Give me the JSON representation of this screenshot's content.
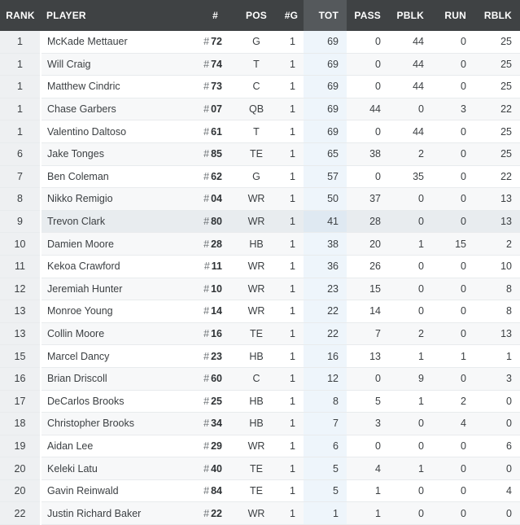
{
  "headers": {
    "rank": "RANK",
    "player": "PLAYER",
    "num": "#",
    "pos": "POS",
    "games": "#G",
    "tot": "TOT",
    "pass": "PASS",
    "pblk": "PBLK",
    "run": "RUN",
    "rblk": "RBLK"
  },
  "rows": [
    {
      "rank": "1",
      "player": "McKade Mettauer",
      "num": "72",
      "pos": "G",
      "g": "1",
      "tot": "69",
      "pass": "0",
      "pblk": "44",
      "run": "0",
      "rblk": "25"
    },
    {
      "rank": "1",
      "player": "Will Craig",
      "num": "74",
      "pos": "T",
      "g": "1",
      "tot": "69",
      "pass": "0",
      "pblk": "44",
      "run": "0",
      "rblk": "25"
    },
    {
      "rank": "1",
      "player": "Matthew Cindric",
      "num": "73",
      "pos": "C",
      "g": "1",
      "tot": "69",
      "pass": "0",
      "pblk": "44",
      "run": "0",
      "rblk": "25"
    },
    {
      "rank": "1",
      "player": "Chase Garbers",
      "num": "07",
      "pos": "QB",
      "g": "1",
      "tot": "69",
      "pass": "44",
      "pblk": "0",
      "run": "3",
      "rblk": "22"
    },
    {
      "rank": "1",
      "player": "Valentino Daltoso",
      "num": "61",
      "pos": "T",
      "g": "1",
      "tot": "69",
      "pass": "0",
      "pblk": "44",
      "run": "0",
      "rblk": "25"
    },
    {
      "rank": "6",
      "player": "Jake Tonges",
      "num": "85",
      "pos": "TE",
      "g": "1",
      "tot": "65",
      "pass": "38",
      "pblk": "2",
      "run": "0",
      "rblk": "25"
    },
    {
      "rank": "7",
      "player": "Ben Coleman",
      "num": "62",
      "pos": "G",
      "g": "1",
      "tot": "57",
      "pass": "0",
      "pblk": "35",
      "run": "0",
      "rblk": "22"
    },
    {
      "rank": "8",
      "player": "Nikko Remigio",
      "num": "04",
      "pos": "WR",
      "g": "1",
      "tot": "50",
      "pass": "37",
      "pblk": "0",
      "run": "0",
      "rblk": "13"
    },
    {
      "rank": "9",
      "player": "Trevon Clark",
      "num": "80",
      "pos": "WR",
      "g": "1",
      "tot": "41",
      "pass": "28",
      "pblk": "0",
      "run": "0",
      "rblk": "13",
      "hover": true
    },
    {
      "rank": "10",
      "player": "Damien Moore",
      "num": "28",
      "pos": "HB",
      "g": "1",
      "tot": "38",
      "pass": "20",
      "pblk": "1",
      "run": "15",
      "rblk": "2"
    },
    {
      "rank": "11",
      "player": "Kekoa Crawford",
      "num": "11",
      "pos": "WR",
      "g": "1",
      "tot": "36",
      "pass": "26",
      "pblk": "0",
      "run": "0",
      "rblk": "10"
    },
    {
      "rank": "12",
      "player": "Jeremiah Hunter",
      "num": "10",
      "pos": "WR",
      "g": "1",
      "tot": "23",
      "pass": "15",
      "pblk": "0",
      "run": "0",
      "rblk": "8"
    },
    {
      "rank": "13",
      "player": "Monroe Young",
      "num": "14",
      "pos": "WR",
      "g": "1",
      "tot": "22",
      "pass": "14",
      "pblk": "0",
      "run": "0",
      "rblk": "8"
    },
    {
      "rank": "13",
      "player": "Collin Moore",
      "num": "16",
      "pos": "TE",
      "g": "1",
      "tot": "22",
      "pass": "7",
      "pblk": "2",
      "run": "0",
      "rblk": "13"
    },
    {
      "rank": "15",
      "player": "Marcel Dancy",
      "num": "23",
      "pos": "HB",
      "g": "1",
      "tot": "16",
      "pass": "13",
      "pblk": "1",
      "run": "1",
      "rblk": "1"
    },
    {
      "rank": "16",
      "player": "Brian Driscoll",
      "num": "60",
      "pos": "C",
      "g": "1",
      "tot": "12",
      "pass": "0",
      "pblk": "9",
      "run": "0",
      "rblk": "3"
    },
    {
      "rank": "17",
      "player": "DeCarlos Brooks",
      "num": "25",
      "pos": "HB",
      "g": "1",
      "tot": "8",
      "pass": "5",
      "pblk": "1",
      "run": "2",
      "rblk": "0"
    },
    {
      "rank": "18",
      "player": "Christopher Brooks",
      "num": "34",
      "pos": "HB",
      "g": "1",
      "tot": "7",
      "pass": "3",
      "pblk": "0",
      "run": "4",
      "rblk": "0"
    },
    {
      "rank": "19",
      "player": "Aidan Lee",
      "num": "29",
      "pos": "WR",
      "g": "1",
      "tot": "6",
      "pass": "0",
      "pblk": "0",
      "run": "0",
      "rblk": "6"
    },
    {
      "rank": "20",
      "player": "Keleki Latu",
      "num": "40",
      "pos": "TE",
      "g": "1",
      "tot": "5",
      "pass": "4",
      "pblk": "1",
      "run": "0",
      "rblk": "0"
    },
    {
      "rank": "20",
      "player": "Gavin Reinwald",
      "num": "84",
      "pos": "TE",
      "g": "1",
      "tot": "5",
      "pass": "1",
      "pblk": "0",
      "run": "0",
      "rblk": "4"
    },
    {
      "rank": "22",
      "player": "Justin Richard Baker",
      "num": "22",
      "pos": "WR",
      "g": "1",
      "tot": "1",
      "pass": "1",
      "pblk": "0",
      "run": "0",
      "rblk": "0"
    }
  ],
  "hash_symbol": "#",
  "colors": {
    "header_bg": "#3f4244",
    "sorted_header_bg": "#55595c",
    "tot_column_bg": "#eef5fb",
    "hover_row_bg": "#e8ecef"
  }
}
